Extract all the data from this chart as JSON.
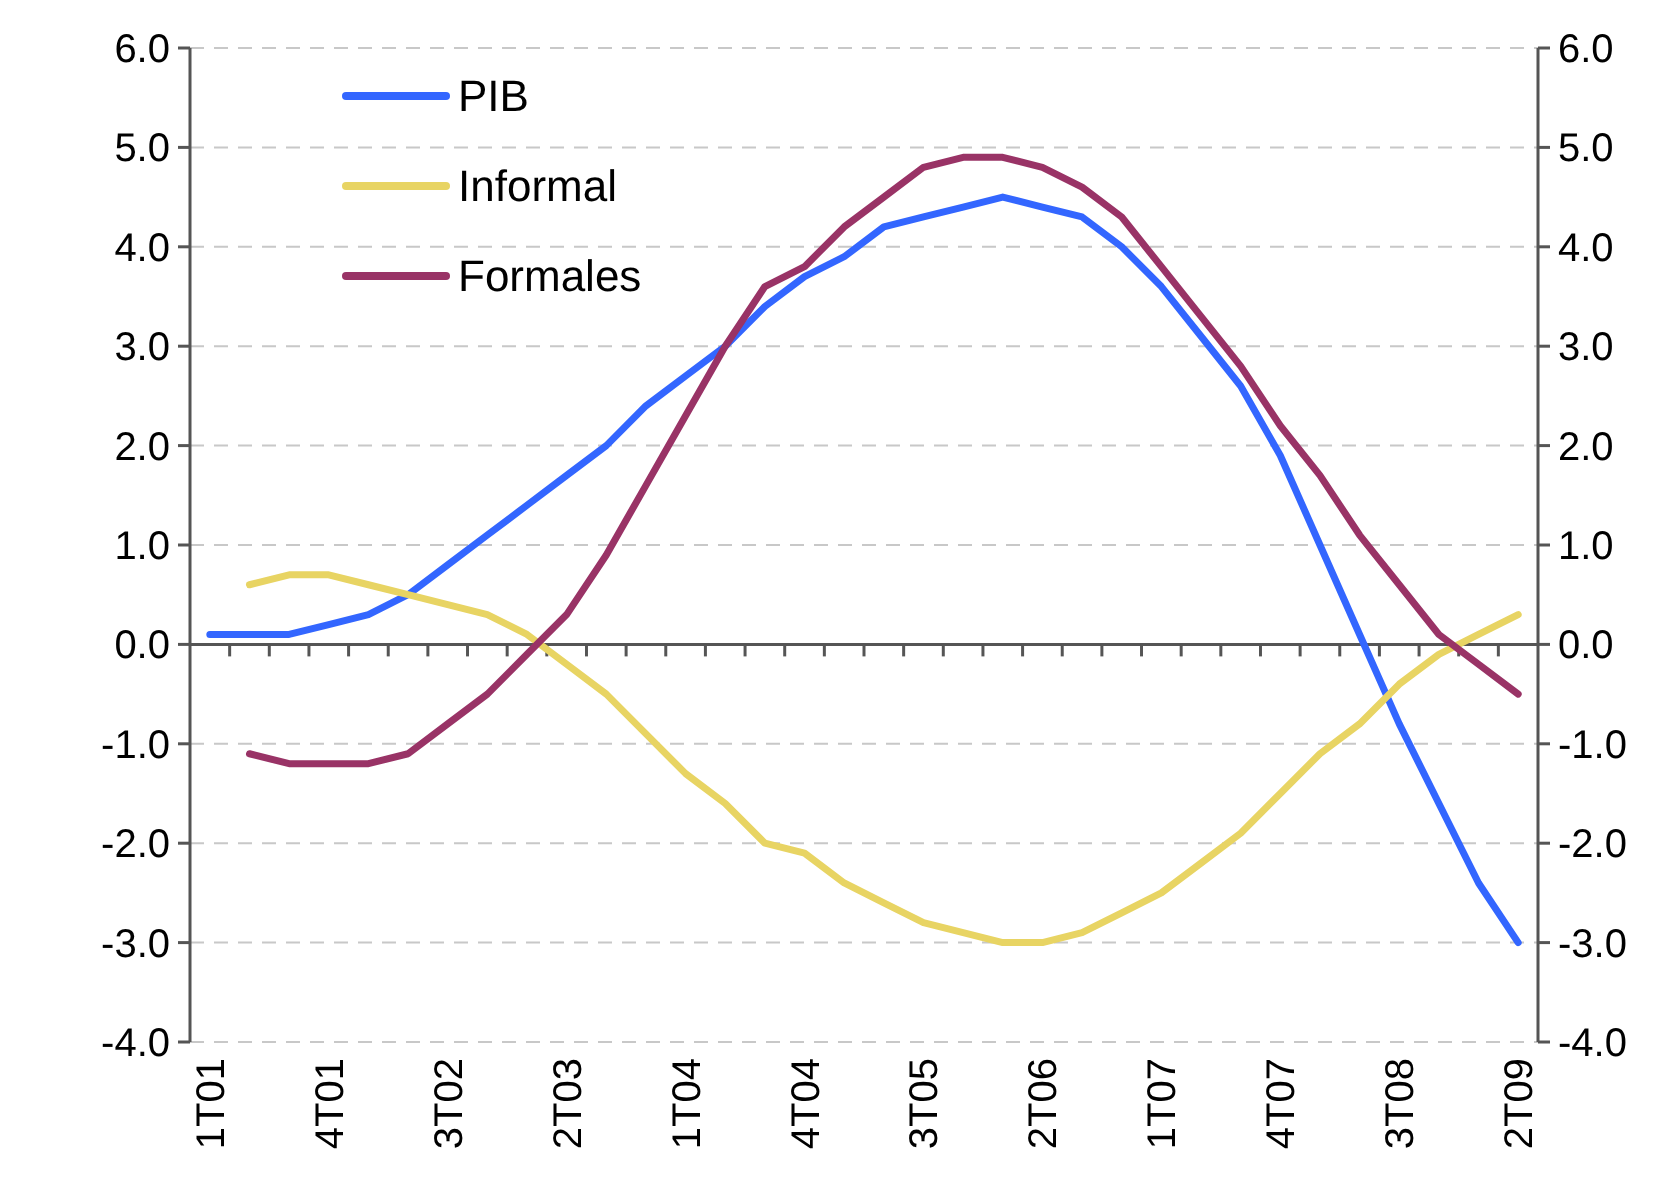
{
  "chart_data": {
    "type": "line",
    "categories": [
      "1T01",
      null,
      null,
      "4T01",
      null,
      null,
      "3T02",
      null,
      null,
      "2T03",
      null,
      null,
      "1T04",
      null,
      null,
      "4T04",
      null,
      null,
      "3T05",
      null,
      null,
      "2T06",
      null,
      null,
      "1T07",
      null,
      null,
      "4T07",
      null,
      null,
      "3T08",
      null,
      null,
      "2T09"
    ],
    "series": [
      {
        "name": "PIB",
        "color": "#3366ff",
        "values": [
          0.1,
          0.1,
          0.1,
          0.2,
          0.3,
          0.5,
          0.8,
          1.1,
          1.4,
          1.7,
          2.0,
          2.4,
          2.7,
          3.0,
          3.4,
          3.7,
          3.9,
          4.2,
          4.3,
          4.4,
          4.5,
          4.4,
          4.3,
          4.0,
          3.6,
          3.1,
          2.6,
          1.9,
          1.0,
          0.1,
          -0.8,
          -1.6,
          -2.4,
          -3.0
        ]
      },
      {
        "name": "Informal",
        "color": "#e8d463",
        "values": [
          null,
          0.6,
          0.7,
          0.7,
          0.6,
          0.5,
          0.4,
          0.3,
          0.1,
          -0.2,
          -0.5,
          -0.9,
          -1.3,
          -1.6,
          -2.0,
          -2.1,
          -2.4,
          -2.6,
          -2.8,
          -2.9,
          -3.0,
          -3.0,
          -2.9,
          -2.7,
          -2.5,
          -2.2,
          -1.9,
          -1.5,
          -1.1,
          -0.8,
          -0.4,
          -0.1,
          0.1,
          0.3
        ]
      },
      {
        "name": "Formales",
        "color": "#993366",
        "values": [
          null,
          -1.1,
          -1.2,
          -1.2,
          -1.2,
          -1.1,
          -0.8,
          -0.5,
          -0.1,
          0.3,
          0.9,
          1.6,
          2.3,
          3.0,
          3.6,
          3.8,
          4.2,
          4.5,
          4.8,
          4.9,
          4.9,
          4.8,
          4.6,
          4.3,
          3.8,
          3.3,
          2.8,
          2.2,
          1.7,
          1.1,
          0.6,
          0.1,
          -0.2,
          -0.5
        ]
      }
    ],
    "ylim": [
      -4,
      6
    ],
    "yticks": [
      {
        "value": -4,
        "label": "-4.0"
      },
      {
        "value": -3,
        "label": "-3.0"
      },
      {
        "value": -2,
        "label": "-2.0"
      },
      {
        "value": -1,
        "label": "-1.0"
      },
      {
        "value": 0,
        "label": "0.0"
      },
      {
        "value": 1,
        "label": "1.0"
      },
      {
        "value": 2,
        "label": "2.0"
      },
      {
        "value": 3,
        "label": "3.0"
      },
      {
        "value": 4,
        "label": "4.0"
      },
      {
        "value": 5,
        "label": "5.0"
      },
      {
        "value": 6,
        "label": "6.0"
      }
    ],
    "y2lim": [
      -4,
      6
    ],
    "y2ticks": [
      {
        "value": -4,
        "label": "-4.0"
      },
      {
        "value": -3,
        "label": "-3.0"
      },
      {
        "value": -2,
        "label": "-2.0"
      },
      {
        "value": -1,
        "label": "-1.0"
      },
      {
        "value": 0,
        "label": "0.0"
      },
      {
        "value": 1,
        "label": "1.0"
      },
      {
        "value": 2,
        "label": "2.0"
      },
      {
        "value": 3,
        "label": "3.0"
      },
      {
        "value": 4,
        "label": "4.0"
      },
      {
        "value": 5,
        "label": "5.0"
      },
      {
        "value": 6,
        "label": "6.0"
      }
    ],
    "grid": "y",
    "legend": "top left",
    "line_style": "solid",
    "marker": "none"
  }
}
